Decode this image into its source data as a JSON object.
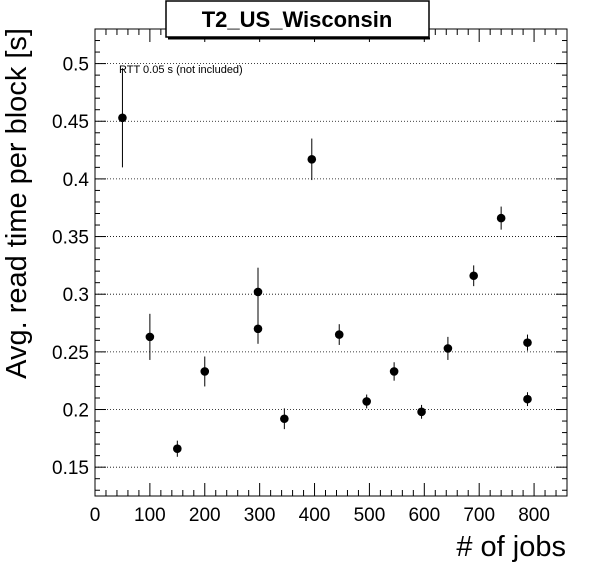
{
  "chart_data": {
    "type": "scatter",
    "title": "T2_US_Wisconsin",
    "xlabel": "# of jobs",
    "ylabel": "Avg. read time per block [s]",
    "annotation": "RTT 0.05 s (not included)",
    "xlim": [
      0,
      860
    ],
    "ylim": [
      0.125,
      0.53
    ],
    "xticks": [
      0,
      100,
      200,
      300,
      400,
      500,
      600,
      700,
      800
    ],
    "yticks": [
      0.15,
      0.2,
      0.25,
      0.3,
      0.35,
      0.4,
      0.45,
      0.5
    ],
    "ytick_labels": [
      "0.15",
      "0.2",
      "0.25",
      "0.3",
      "0.35",
      "0.4",
      "0.45",
      "0.5"
    ],
    "grid": "horizontal dotted",
    "points": [
      {
        "x": 50,
        "y": 0.453,
        "err": 0.043
      },
      {
        "x": 100,
        "y": 0.263,
        "err": 0.02
      },
      {
        "x": 150,
        "y": 0.166,
        "err": 0.007
      },
      {
        "x": 200,
        "y": 0.233,
        "err": 0.013
      },
      {
        "x": 297,
        "y": 0.302,
        "err": 0.021
      },
      {
        "x": 297,
        "y": 0.27,
        "err": 0.013
      },
      {
        "x": 345,
        "y": 0.192,
        "err": 0.009
      },
      {
        "x": 395,
        "y": 0.417,
        "err": 0.018
      },
      {
        "x": 445,
        "y": 0.265,
        "err": 0.009
      },
      {
        "x": 495,
        "y": 0.207,
        "err": 0.006
      },
      {
        "x": 545,
        "y": 0.233,
        "err": 0.008
      },
      {
        "x": 595,
        "y": 0.198,
        "err": 0.006
      },
      {
        "x": 643,
        "y": 0.253,
        "err": 0.01
      },
      {
        "x": 690,
        "y": 0.316,
        "err": 0.009
      },
      {
        "x": 740,
        "y": 0.366,
        "err": 0.01
      },
      {
        "x": 788,
        "y": 0.258,
        "err": 0.007
      },
      {
        "x": 788,
        "y": 0.209,
        "err": 0.006
      }
    ],
    "marker_color": "#000000"
  }
}
